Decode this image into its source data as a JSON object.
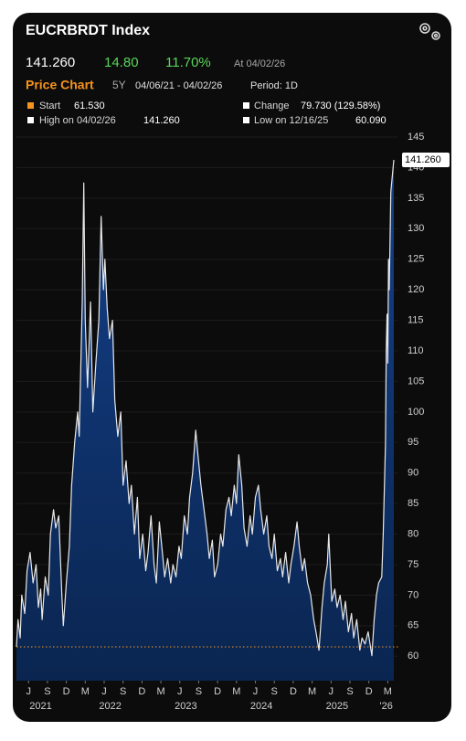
{
  "header": {
    "ticker": "EUCRBRDT Index",
    "change": "14.80",
    "change_pct": "11.70%",
    "as_of": "At 04/02/26"
  },
  "toolbar": {
    "tab": "Price Chart",
    "range": "5Y",
    "dates": "04/06/21 - 04/02/26",
    "period": "Period: 1D"
  },
  "legend": {
    "start": "Start",
    "change_label": "Change",
    "change_value": "79.730 (129.58%)",
    "high_label": "High on 04/02/26",
    "high_value": "141.260",
    "low_label": "Low on 12/16/25",
    "low_value": "60.090"
  },
  "chart_data": {
    "type": "area",
    "series": [
      {
        "name": "EUCRBRDT Index",
        "color": "#e8e8e8",
        "fill": "#0c2d5e",
        "x": [
          2021.26,
          2021.28,
          2021.31,
          2021.33,
          2021.37,
          2021.4,
          2021.44,
          2021.48,
          2021.52,
          2021.55,
          2021.58,
          2021.6,
          2021.64,
          2021.68,
          2021.71,
          2021.75,
          2021.78,
          2021.82,
          2021.86,
          2021.88,
          2021.92,
          2021.96,
          2021.99,
          2022.03,
          2022.07,
          2022.09,
          2022.13,
          2022.15,
          2022.17,
          2022.2,
          2022.24,
          2022.27,
          2022.31,
          2022.35,
          2022.38,
          2022.41,
          2022.43,
          2022.46,
          2022.49,
          2022.53,
          2022.56,
          2022.6,
          2022.64,
          2022.67,
          2022.71,
          2022.75,
          2022.78,
          2022.82,
          2022.86,
          2022.89,
          2022.93,
          2022.97,
          2023.0,
          2023.04,
          2023.08,
          2023.11,
          2023.15,
          2023.19,
          2023.22,
          2023.26,
          2023.3,
          2023.33,
          2023.37,
          2023.41,
          2023.44,
          2023.48,
          2023.52,
          2023.55,
          2023.59,
          2023.63,
          2023.66,
          2023.7,
          2023.74,
          2023.78,
          2023.81,
          2023.85,
          2023.88,
          2023.92,
          2023.96,
          2023.99,
          2024.03,
          2024.07,
          2024.1,
          2024.14,
          2024.17,
          2024.2,
          2024.24,
          2024.27,
          2024.31,
          2024.35,
          2024.38,
          2024.42,
          2024.46,
          2024.49,
          2024.53,
          2024.57,
          2024.6,
          2024.64,
          2024.67,
          2024.71,
          2024.75,
          2024.78,
          2024.82,
          2024.86,
          2024.89,
          2024.93,
          2024.97,
          2025.0,
          2025.04,
          2025.07,
          2025.11,
          2025.15,
          2025.19,
          2025.22,
          2025.26,
          2025.3,
          2025.33,
          2025.37,
          2025.39,
          2025.43,
          2025.47,
          2025.5,
          2025.54,
          2025.58,
          2025.61,
          2025.65,
          2025.69,
          2025.72,
          2025.76,
          2025.8,
          2025.83,
          2025.87,
          2025.91,
          2025.96,
          2025.99,
          2026.02,
          2026.05,
          2026.09,
          2026.11,
          2026.14,
          2026.15,
          2026.16,
          2026.17,
          2026.18,
          2026.19,
          2026.21,
          2026.25
        ],
        "values": [
          61.53,
          66,
          63,
          70,
          67,
          74,
          77,
          72,
          75,
          68,
          71,
          66,
          73,
          70,
          80,
          84,
          81,
          83,
          70,
          65,
          72,
          78,
          88,
          95,
          100,
          96,
          118,
          137.5,
          115,
          104,
          118,
          100,
          108,
          115,
          132,
          120,
          125,
          117,
          112,
          115,
          102,
          96,
          100,
          88,
          92,
          85,
          88,
          80,
          86,
          76,
          80,
          74,
          77,
          83,
          75,
          72,
          82,
          77,
          73,
          76,
          72,
          75,
          73,
          78,
          76,
          83,
          80,
          86,
          90,
          97,
          93,
          88,
          84,
          80,
          76,
          79,
          73,
          75,
          80,
          78,
          84,
          86,
          83,
          88,
          85,
          93,
          88,
          81,
          78,
          83,
          80,
          86,
          88,
          84,
          80,
          83,
          78,
          76,
          80,
          74,
          76,
          73,
          77,
          72,
          75,
          78,
          82,
          78,
          74,
          76,
          72,
          70,
          66,
          64,
          61,
          68,
          72,
          75,
          80,
          69,
          71,
          68,
          70,
          66,
          69,
          64,
          67,
          63,
          66,
          61,
          63,
          62,
          64,
          60.09,
          66,
          70,
          72,
          73,
          80,
          95,
          110,
          116,
          108,
          125,
          120,
          136,
          141.26
        ]
      }
    ],
    "xlim": [
      2021.26,
      2026.25
    ],
    "xticks": [
      {
        "value": 2021.42,
        "label": "J"
      },
      {
        "value": 2021.67,
        "label": "S"
      },
      {
        "value": 2021.92,
        "label": "D"
      },
      {
        "value": 2022.17,
        "label": "M"
      },
      {
        "value": 2022.42,
        "label": "J"
      },
      {
        "value": 2022.67,
        "label": "S"
      },
      {
        "value": 2022.92,
        "label": "D"
      },
      {
        "value": 2023.17,
        "label": "M"
      },
      {
        "value": 2023.42,
        "label": "J"
      },
      {
        "value": 2023.67,
        "label": "S"
      },
      {
        "value": 2023.92,
        "label": "D"
      },
      {
        "value": 2024.17,
        "label": "M"
      },
      {
        "value": 2024.42,
        "label": "J"
      },
      {
        "value": 2024.67,
        "label": "S"
      },
      {
        "value": 2024.92,
        "label": "D"
      },
      {
        "value": 2025.17,
        "label": "M"
      },
      {
        "value": 2025.42,
        "label": "J"
      },
      {
        "value": 2025.67,
        "label": "S"
      },
      {
        "value": 2025.92,
        "label": "D"
      },
      {
        "value": 2026.17,
        "label": "M"
      }
    ],
    "year_labels": [
      {
        "value": 2021.58,
        "label": "2021"
      },
      {
        "value": 2022.5,
        "label": "2022"
      },
      {
        "value": 2023.5,
        "label": "2023"
      },
      {
        "value": 2024.5,
        "label": "2024"
      },
      {
        "value": 2025.5,
        "label": "2025"
      },
      {
        "value": 2026.15,
        "label": "'26"
      }
    ],
    "ylim": [
      56,
      146.5
    ],
    "yticks": [
      60,
      65,
      70,
      75,
      80,
      85,
      90,
      95,
      100,
      105,
      110,
      115,
      120,
      125,
      130,
      135,
      140,
      145
    ],
    "grid": true,
    "reference_line": {
      "value": 61.53,
      "label": "61.530",
      "color": "#f7941d"
    },
    "last_price": {
      "value": 141.26,
      "label": "141.260"
    }
  }
}
